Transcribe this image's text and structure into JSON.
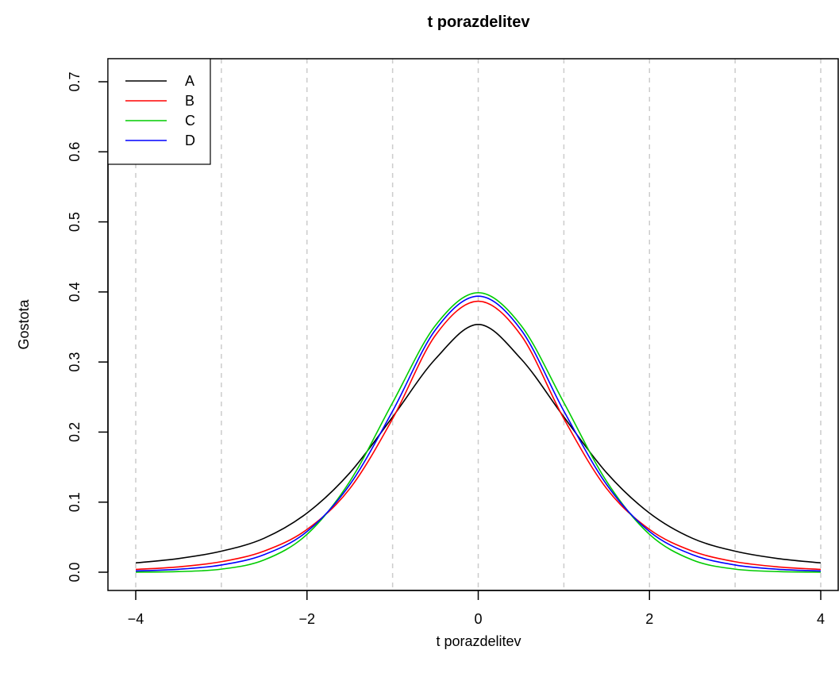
{
  "chart_data": {
    "type": "line",
    "title": "t porazdelitev",
    "xlabel": "t porazdelitev",
    "ylabel": "Gostota",
    "xlim": [
      -4,
      4
    ],
    "ylim": [
      0,
      0.7
    ],
    "xticks": [
      -4,
      -2,
      0,
      2,
      4
    ],
    "xtick_labels": [
      "−4",
      "−2",
      "0",
      "2",
      "4"
    ],
    "yticks": [
      0.0,
      0.1,
      0.2,
      0.3,
      0.4,
      0.5,
      0.6,
      0.7
    ],
    "ytick_labels": [
      "0.0",
      "0.1",
      "0.2",
      "0.3",
      "0.4",
      "0.5",
      "0.6",
      "0.7"
    ],
    "grid": {
      "vertical_dashed_at": [
        -4,
        -3,
        -2,
        -1,
        0,
        1,
        2,
        3,
        4
      ]
    },
    "legend_position": "top-left",
    "x": [
      -4,
      -3.5,
      -3,
      -2.5,
      -2,
      -1.5,
      -1,
      -0.5,
      0,
      0.5,
      1,
      1.5,
      2,
      2.5,
      3,
      3.5,
      4
    ],
    "series": [
      {
        "name": "A",
        "color": "#000000",
        "values": [
          0.0133,
          0.0195,
          0.03,
          0.0485,
          0.0844,
          0.1418,
          0.2216,
          0.3044,
          0.3536,
          0.3044,
          0.2216,
          0.1418,
          0.0844,
          0.0485,
          0.03,
          0.0195,
          0.0133
        ]
      },
      {
        "name": "B",
        "color": "#ff0000",
        "values": [
          0.004,
          0.0076,
          0.015,
          0.0302,
          0.061,
          0.1193,
          0.2191,
          0.3381,
          0.3867,
          0.3381,
          0.2191,
          0.1193,
          0.061,
          0.0302,
          0.015,
          0.0076,
          0.004
        ]
      },
      {
        "name": "C",
        "color": "#00cc00",
        "values": [
          0.0001,
          0.0009,
          0.0044,
          0.0175,
          0.054,
          0.1295,
          0.242,
          0.3521,
          0.3989,
          0.3521,
          0.242,
          0.1295,
          0.054,
          0.0175,
          0.0044,
          0.0009,
          0.0001
        ]
      },
      {
        "name": "D",
        "color": "#0000ff",
        "values": [
          0.0018,
          0.0042,
          0.0103,
          0.0251,
          0.058,
          0.125,
          0.23,
          0.3459,
          0.394,
          0.3459,
          0.23,
          0.125,
          0.058,
          0.0251,
          0.0103,
          0.0042,
          0.0018
        ]
      }
    ]
  }
}
